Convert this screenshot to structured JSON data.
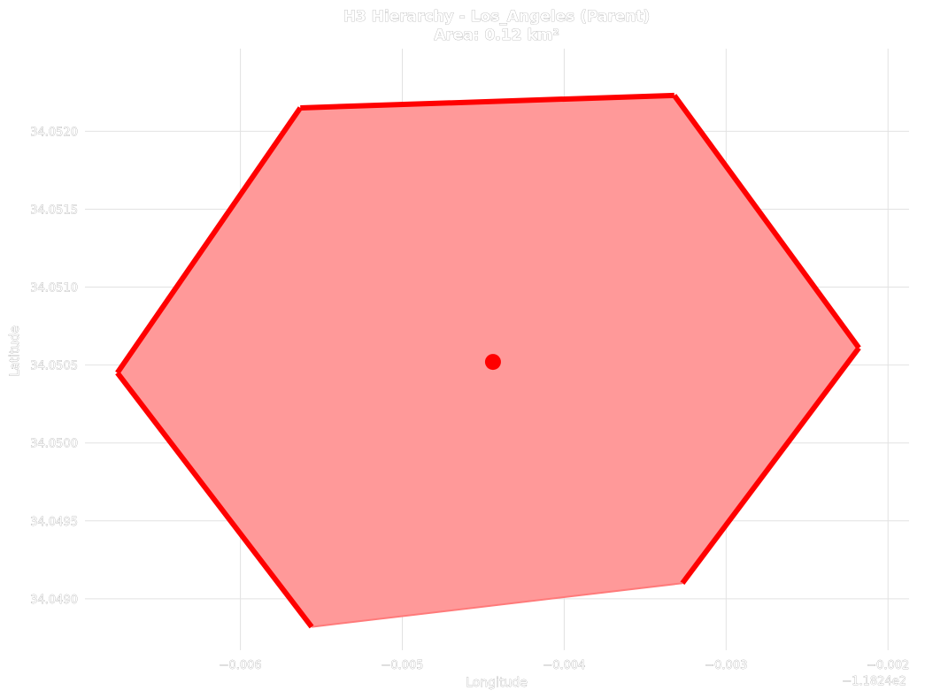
{
  "chart_data": {
    "type": "polygon",
    "title": "H3 Hierarchy - Los_Angeles (Parent)",
    "subtitle": "Area: 0.12 km²",
    "xlabel": "Longitude",
    "ylabel": "Latitude",
    "x_offset_label": "−1.1824e2",
    "xlim": [
      -0.00696,
      -0.00187
    ],
    "ylim": [
      34.04867,
      34.05253
    ],
    "x_ticks": [
      -0.006,
      -0.005,
      -0.004,
      -0.003,
      -0.002
    ],
    "x_tick_labels": [
      "−0.006",
      "−0.005",
      "−0.004",
      "−0.003",
      "−0.002"
    ],
    "y_ticks": [
      34.049,
      34.0495,
      34.05,
      34.0505,
      34.051,
      34.0515,
      34.052
    ],
    "y_tick_labels": [
      "34.0490",
      "34.0495",
      "34.0500",
      "34.0505",
      "34.0510",
      "34.0515",
      "34.0520"
    ],
    "grid": true,
    "series": [
      {
        "kind": "hexagon",
        "fill_color": "#ff9999",
        "edge_color": "#ff0000",
        "vertices": [
          {
            "x": -0.00563,
            "y": 34.05215
          },
          {
            "x": -0.00332,
            "y": 34.05223
          },
          {
            "x": -0.00218,
            "y": 34.05061
          },
          {
            "x": -0.00327,
            "y": 34.0491
          },
          {
            "x": -0.00556,
            "y": 34.04882
          },
          {
            "x": -0.00676,
            "y": 34.05045
          }
        ],
        "open_edge_index": 3
      },
      {
        "kind": "center-point",
        "color": "#ff0000",
        "x": -0.00444,
        "y": 34.05052
      }
    ]
  }
}
